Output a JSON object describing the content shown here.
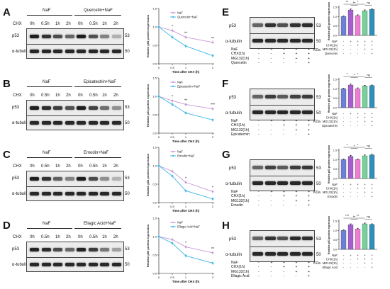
{
  "panels": [
    {
      "label": "A",
      "cond_a": "NaF",
      "cond_b": "Quercetin+NaF",
      "cond_b_short": "Quercetin",
      "chx_label": "CHX",
      "timepoints": [
        "0h",
        "0.5h",
        "1h",
        "2h",
        "0h",
        "0.5h",
        "1h",
        "2h"
      ],
      "blots": [
        {
          "protein": "p53",
          "kda": "53"
        },
        {
          "protein": "α-tubulin",
          "kda": "50"
        }
      ]
    },
    {
      "label": "B",
      "cond_a": "NaF",
      "cond_b": "Epicatechin+NaF",
      "cond_b_short": "Epicatechin",
      "chx_label": "CHX",
      "timepoints": [
        "0h",
        "0.5h",
        "1h",
        "2h",
        "0h",
        "0.5h",
        "1h",
        "2h"
      ],
      "blots": [
        {
          "protein": "p53",
          "kda": "53"
        },
        {
          "protein": "α-tubulin",
          "kda": "50"
        }
      ]
    },
    {
      "label": "C",
      "cond_a": "NaF",
      "cond_b": "Emodin+NaF",
      "cond_b_short": "Emodin",
      "chx_label": "CHX",
      "timepoints": [
        "0h",
        "0.5h",
        "1h",
        "2h",
        "0h",
        "0.5h",
        "1h",
        "2h"
      ],
      "blots": [
        {
          "protein": "p53",
          "kda": "53"
        },
        {
          "protein": "α-tubulin",
          "kda": "50"
        }
      ]
    },
    {
      "label": "D",
      "cond_a": "NaF",
      "cond_b": "Ellagic Acid+NaF",
      "cond_b_short": "Ellagic Acid",
      "chx_label": "CHX",
      "timepoints": [
        "0h",
        "0.5h",
        "1h",
        "2h",
        "0h",
        "0.5h",
        "1h",
        "2h"
      ],
      "blots": [
        {
          "protein": "p53",
          "kda": "53"
        },
        {
          "protein": "α-tubulin",
          "kda": "50"
        }
      ]
    },
    {
      "label": "E",
      "cond_b_short": "Quercetin",
      "blots": [
        {
          "protein": "p53",
          "kda": "53"
        },
        {
          "protein": "α-tubulin",
          "kda": "50"
        }
      ],
      "kda_unit": "KDa",
      "treatment_rows": [
        "NaF",
        "CHX(1h)",
        "MG132(1h)",
        "Quercetin"
      ]
    },
    {
      "label": "F",
      "cond_b_short": "Epicatechin",
      "blots": [
        {
          "protein": "p53",
          "kda": "53"
        },
        {
          "protein": "α-tubulin",
          "kda": "50"
        }
      ],
      "kda_unit": "KDa",
      "treatment_rows": [
        "NaF",
        "CHX(1h)",
        "MG132(1h)",
        "Epicatechin"
      ]
    },
    {
      "label": "G",
      "cond_b_short": "Emodin",
      "blots": [
        {
          "protein": "p53",
          "kda": "53"
        },
        {
          "protein": "α-tubulin",
          "kda": "50"
        }
      ],
      "kda_unit": "KDa",
      "treatment_rows": [
        "NaF",
        "CHX(1h)",
        "MG132(1h)",
        "Emodin"
      ]
    },
    {
      "label": "H",
      "cond_b_short": "Ellagic Acid",
      "blots": [
        {
          "protein": "p53",
          "kda": "53"
        },
        {
          "protein": "α-tubulin",
          "kda": "50"
        }
      ],
      "kda_unit": "KDa",
      "treatment_rows": [
        "NaF",
        "CHX(1h)",
        "MG132(1h)",
        "Ellagic Acid"
      ]
    }
  ],
  "treatment_matrix": [
    [
      "-",
      "+",
      "+",
      "+",
      "+"
    ],
    [
      "-",
      "-",
      "+",
      "+",
      "+"
    ],
    [
      "-",
      "-",
      "-",
      "+",
      "+"
    ],
    [
      "-",
      "-",
      "-",
      "-",
      "+"
    ]
  ],
  "chart_data": [
    {
      "panel": "A",
      "type": "line",
      "xlabel": "Time after CHX (h)",
      "ylabel": "Relative p53 protein expression",
      "x": [
        0,
        0.5,
        1,
        2
      ],
      "xticks": [
        "0",
        "0.5",
        "1",
        "2"
      ],
      "ylim": [
        0,
        1.5
      ],
      "yticks": [
        "0.0",
        "0.5",
        "1.0",
        "1.5"
      ],
      "series": [
        {
          "name": "NaF",
          "color": "#c69ad6",
          "values": [
            1.0,
            0.9,
            0.72,
            0.58
          ]
        },
        {
          "name": "Quercetin+NaF",
          "color": "#3fb6e6",
          "values": [
            1.0,
            0.72,
            0.48,
            0.22
          ]
        }
      ],
      "significance": [
        "",
        "*",
        "**",
        "**"
      ]
    },
    {
      "panel": "B",
      "type": "line",
      "xlabel": "Time after CHX (h)",
      "ylabel": "Relative p53 protein expression",
      "x": [
        0,
        0.5,
        1,
        2
      ],
      "xticks": [
        "0",
        "0.5",
        "1",
        "2"
      ],
      "ylim": [
        0,
        1.5
      ],
      "yticks": [
        "0.0",
        "0.5",
        "1.0",
        "1.5"
      ],
      "series": [
        {
          "name": "NaF",
          "color": "#c69ad6",
          "values": [
            1.0,
            0.88,
            0.78,
            0.66
          ]
        },
        {
          "name": "Epicatechin+NaF",
          "color": "#3fb6e6",
          "values": [
            1.0,
            0.78,
            0.55,
            0.36
          ]
        }
      ],
      "significance": [
        "",
        "*",
        "**",
        "***"
      ]
    },
    {
      "panel": "C",
      "type": "line",
      "xlabel": "Time after CHX (h)",
      "ylabel": "Relative p53 protein expression",
      "x": [
        0,
        0.5,
        1,
        2
      ],
      "xticks": [
        "0",
        "0.5",
        "1",
        "2"
      ],
      "ylim": [
        0,
        1.5
      ],
      "yticks": [
        "0.0",
        "0.5",
        "1.0",
        "1.5"
      ],
      "series": [
        {
          "name": "NaF",
          "color": "#c69ad6",
          "values": [
            1.0,
            0.85,
            0.55,
            0.3
          ]
        },
        {
          "name": "Emodin+NaF",
          "color": "#3fb6e6",
          "values": [
            1.0,
            0.72,
            0.32,
            0.1
          ]
        }
      ],
      "significance": [
        "",
        "",
        "*",
        "*"
      ]
    },
    {
      "panel": "D",
      "type": "line",
      "xlabel": "Time after CHX (h)",
      "ylabel": "Relative p53 protein expression",
      "x": [
        0,
        0.5,
        1,
        2
      ],
      "xticks": [
        "0",
        "0.5",
        "1",
        "2"
      ],
      "ylim": [
        0,
        1.5
      ],
      "yticks": [
        "0.0",
        "0.5",
        "1.0",
        "1.5"
      ],
      "series": [
        {
          "name": "NaF",
          "color": "#c69ad6",
          "values": [
            1.0,
            0.92,
            0.72,
            0.56
          ]
        },
        {
          "name": "Ellagic Acid+NaF",
          "color": "#3fb6e6",
          "values": [
            1.0,
            0.82,
            0.48,
            0.28
          ]
        }
      ],
      "significance": [
        "",
        "",
        "*",
        "**"
      ]
    },
    {
      "panel": "E",
      "type": "bar",
      "ylabel": "Relative p53 protein expression",
      "categories": [
        "1",
        "2",
        "3",
        "4",
        "5"
      ],
      "values": [
        1.0,
        1.35,
        1.05,
        1.3,
        1.38
      ],
      "errors": [
        0.03,
        0.05,
        0.04,
        0.05,
        0.03
      ],
      "colors": [
        "#6f7fd8",
        "#a55fcf",
        "#ee7cd2",
        "#74d29a",
        "#2f8fb8"
      ],
      "ylim": [
        0,
        1.5
      ],
      "yticks": [
        "0.0",
        "0.5",
        "1.0",
        "1.5"
      ],
      "significance": [
        "**",
        "**",
        "*",
        "ns"
      ]
    },
    {
      "panel": "F",
      "type": "bar",
      "ylabel": "Relative p53 protein expression",
      "categories": [
        "1",
        "2",
        "3",
        "4",
        "5"
      ],
      "values": [
        1.0,
        1.2,
        1.0,
        1.15,
        1.17
      ],
      "errors": [
        0.04,
        0.05,
        0.05,
        0.04,
        0.03
      ],
      "colors": [
        "#6f7fd8",
        "#a55fcf",
        "#ee7cd2",
        "#74d29a",
        "#2f8fb8"
      ],
      "ylim": [
        0,
        1.5
      ],
      "yticks": [
        "0.0",
        "0.5",
        "1.0",
        "1.5"
      ],
      "significance": [
        "*",
        "*",
        "*",
        "ns"
      ]
    },
    {
      "panel": "G",
      "type": "bar",
      "ylabel": "Relative p53 protein expression",
      "categories": [
        "1",
        "2",
        "3",
        "4",
        "5"
      ],
      "values": [
        1.0,
        1.17,
        1.0,
        1.2,
        1.25
      ],
      "errors": [
        0.04,
        0.06,
        0.04,
        0.05,
        0.04
      ],
      "colors": [
        "#6f7fd8",
        "#a55fcf",
        "#ee7cd2",
        "#74d29a",
        "#2f8fb8"
      ],
      "ylim": [
        0,
        1.5
      ],
      "yticks": [
        "0.0",
        "0.5",
        "1.0",
        "1.5"
      ],
      "significance": [
        "*",
        "*",
        "*",
        "ns"
      ]
    },
    {
      "panel": "H",
      "type": "bar",
      "ylabel": "Relative p53 protein expression",
      "categories": [
        "1",
        "2",
        "3",
        "4",
        "5"
      ],
      "values": [
        1.0,
        1.3,
        1.08,
        1.35,
        1.32
      ],
      "errors": [
        0.03,
        0.05,
        0.04,
        0.04,
        0.03
      ],
      "colors": [
        "#6f7fd8",
        "#a55fcf",
        "#ee7cd2",
        "#74d29a",
        "#2f8fb8"
      ],
      "ylim": [
        0,
        1.5
      ],
      "yticks": [
        "0.0",
        "0.5",
        "1.0",
        "1.5"
      ],
      "significance": [
        "***",
        "**",
        "**",
        "ns"
      ]
    }
  ]
}
